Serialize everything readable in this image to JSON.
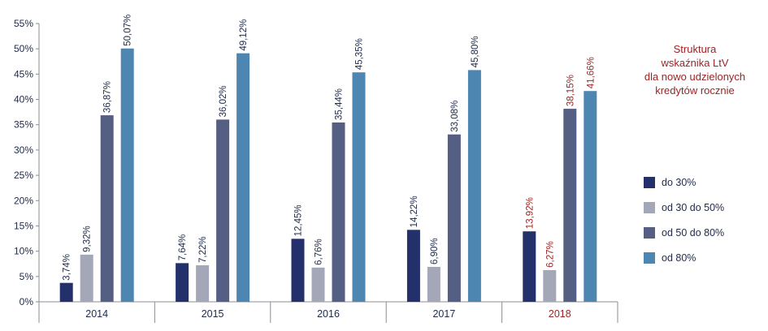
{
  "chart_data": {
    "type": "bar",
    "categories": [
      "2014",
      "2015",
      "2016",
      "2017",
      "2018"
    ],
    "highlighted_category": "2018",
    "ylim": [
      0,
      55
    ],
    "y_ticks": [
      0,
      5,
      10,
      15,
      20,
      25,
      30,
      35,
      40,
      45,
      50,
      55
    ],
    "y_tick_labels": [
      "0%",
      "5%",
      "10%",
      "15%",
      "20%",
      "25%",
      "30%",
      "35%",
      "40%",
      "45%",
      "50%",
      "55%"
    ],
    "grid": false,
    "legend_position": "right",
    "series": [
      {
        "name": "do 30%",
        "color": "#23306b",
        "values": [
          3.74,
          7.64,
          12.45,
          14.22,
          13.92
        ],
        "labels": [
          "3,74%",
          "7,64%",
          "12,45%",
          "14,22%",
          "13,92%"
        ]
      },
      {
        "name": "od 30 do 50%",
        "color": "#a3a7b8",
        "values": [
          9.32,
          7.22,
          6.76,
          6.9,
          6.27
        ],
        "labels": [
          "9,32%",
          "7,22%",
          "6,76%",
          "6,90%",
          "6,27%"
        ]
      },
      {
        "name": "od 50 do 80%",
        "color": "#555f84",
        "values": [
          36.87,
          36.02,
          35.44,
          33.08,
          38.15
        ],
        "labels": [
          "36,87%",
          "36,02%",
          "35,44%",
          "33,08%",
          "38,15%"
        ]
      },
      {
        "name": "od 80%",
        "color": "#4e86b2",
        "values": [
          50.07,
          49.12,
          45.35,
          45.8,
          41.66
        ],
        "labels": [
          "50,07%",
          "49,12%",
          "45,35%",
          "45,80%",
          "41,66%"
        ]
      }
    ]
  },
  "colors": {
    "axis_text": "#1f2a4a",
    "axis_line": "#8c8c94",
    "highlight_text": "#9b2426"
  },
  "side_title": {
    "lines": [
      "Struktura",
      "wskaźnika LtV",
      "dla nowo udzielonych",
      "kredytów rocznie"
    ]
  },
  "legend": {
    "items": [
      {
        "label": "do 30%",
        "color": "#23306b"
      },
      {
        "label": "od 30 do 50%",
        "color": "#a3a7b8"
      },
      {
        "label": "od 50 do 80%",
        "color": "#555f84"
      },
      {
        "label": "od 80%",
        "color": "#4e86b2"
      }
    ]
  }
}
